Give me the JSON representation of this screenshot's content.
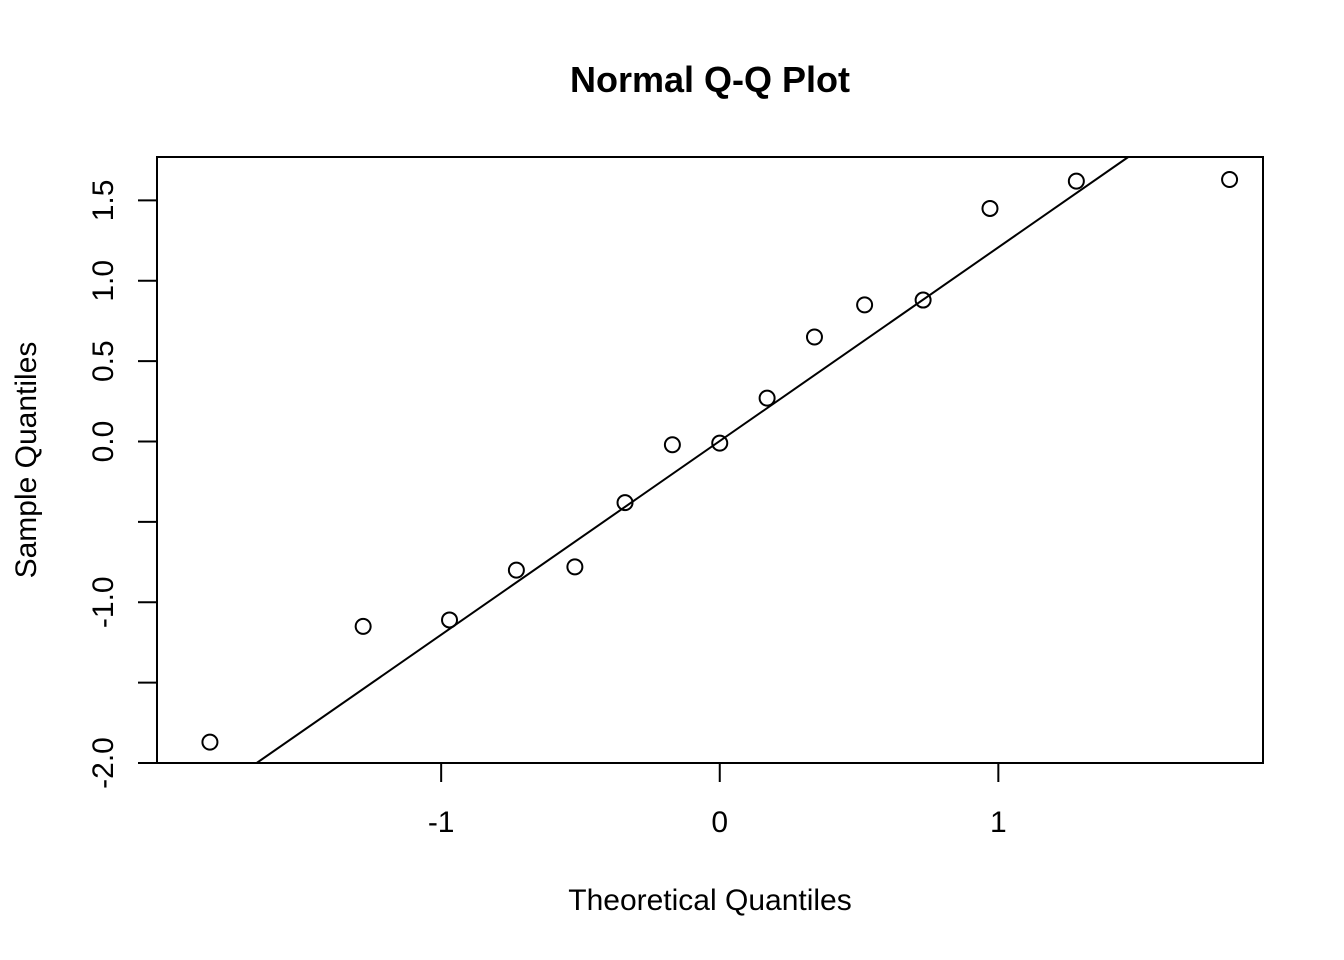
{
  "chart_data": {
    "type": "scatter",
    "title": "Normal Q-Q Plot",
    "xlabel": "Theoretical Quantiles",
    "ylabel": "Sample Quantiles",
    "xlim": [
      -2.02,
      1.95
    ],
    "ylim": [
      -2.0,
      1.77
    ],
    "x_ticks": [
      {
        "value": -1,
        "label": "-1"
      },
      {
        "value": 0,
        "label": "0"
      },
      {
        "value": 1,
        "label": "1"
      }
    ],
    "y_ticks": [
      {
        "value": -2.0,
        "label": "-2.0"
      },
      {
        "value": -1.5,
        "label": ""
      },
      {
        "value": -1.0,
        "label": "-1.0"
      },
      {
        "value": -0.5,
        "label": ""
      },
      {
        "value": 0.0,
        "label": "0.0"
      },
      {
        "value": 0.5,
        "label": "0.5"
      },
      {
        "value": 1.0,
        "label": "1.0"
      },
      {
        "value": 1.5,
        "label": "1.5"
      }
    ],
    "points": {
      "x": [
        -1.83,
        -1.28,
        -0.97,
        -0.73,
        -0.52,
        -0.34,
        -0.17,
        0.0,
        0.17,
        0.34,
        0.52,
        0.73,
        0.97,
        1.28,
        1.83
      ],
      "y": [
        -1.87,
        -1.15,
        -1.11,
        -0.8,
        -0.78,
        -0.38,
        -0.02,
        -0.01,
        0.27,
        0.65,
        0.85,
        0.88,
        1.45,
        1.62,
        1.63
      ]
    },
    "reference_line": {
      "intercept": 0.003,
      "slope": 1.205
    },
    "grid": false,
    "legend": "none"
  }
}
